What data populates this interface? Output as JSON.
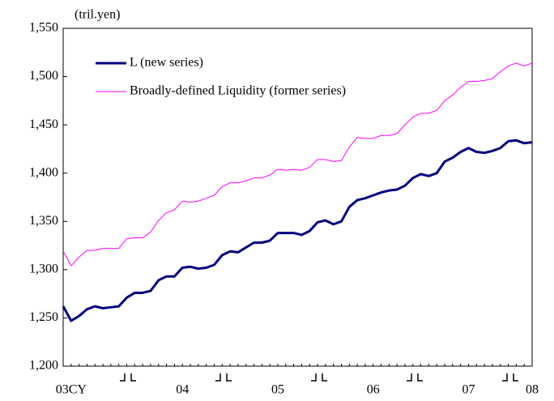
{
  "chart_data": {
    "type": "line",
    "y_unit": "(tril.yen)",
    "categories": [
      null,
      "03CY",
      null,
      null,
      null,
      null,
      null,
      null,
      null,
      null,
      null,
      null,
      null,
      null,
      null,
      "04",
      null,
      null,
      null,
      null,
      null,
      null,
      null,
      null,
      null,
      null,
      null,
      "05",
      null,
      null,
      null,
      null,
      null,
      null,
      null,
      null,
      null,
      null,
      null,
      "06",
      null,
      null,
      null,
      null,
      null,
      null,
      null,
      null,
      null,
      null,
      null,
      "07",
      null,
      null,
      null,
      null,
      null,
      null,
      null,
      "08"
    ],
    "series": [
      {
        "name": "L (new series)",
        "color": "#000080",
        "width": 3,
        "values": [
          1262,
          1247,
          1252,
          1259,
          1262,
          1260,
          1261,
          1262,
          1271,
          1276,
          1276,
          1278,
          1289,
          1293,
          1293,
          1302,
          1303,
          1301,
          1302,
          1305,
          1315,
          1319,
          1318,
          1323,
          1328,
          1328,
          1330,
          1338,
          1338,
          1338,
          1336,
          1340,
          1349,
          1351,
          1347,
          1350,
          1365,
          1372,
          1374,
          1377,
          1380,
          1382,
          1383,
          1387,
          1395,
          1399,
          1397,
          1400,
          1412,
          1416,
          1422,
          1426,
          1422,
          1421,
          1423,
          1426,
          1433,
          1434,
          1431,
          1432
        ]
      },
      {
        "name": "Broadly-defined Liquidity (former series)",
        "color": "#ff00ff",
        "width": 1,
        "values": [
          1319,
          1304,
          1313,
          1320,
          1320,
          1322,
          1322,
          1322,
          1332,
          1333,
          1333,
          1339,
          1351,
          1359,
          1362,
          1371,
          1370,
          1371,
          1374,
          1377,
          1386,
          1390,
          1390,
          1392,
          1395,
          1395,
          1398,
          1404,
          1403,
          1404,
          1403,
          1406,
          1414,
          1414,
          1412,
          1413,
          1427,
          1437,
          1436,
          1436,
          1439,
          1439,
          1441,
          1450,
          1458,
          1462,
          1462,
          1465,
          1475,
          1481,
          1489,
          1495,
          1495,
          1496,
          1498,
          1505,
          1511,
          1514,
          1511,
          1514
        ]
      }
    ],
    "ylim": [
      1200,
      1550
    ],
    "yticks": [
      {
        "value": 1200,
        "label": "1,200"
      },
      {
        "value": 1250,
        "label": "1,250"
      },
      {
        "value": 1300,
        "label": "1,300"
      },
      {
        "value": 1350,
        "label": "1,350"
      },
      {
        "value": 1400,
        "label": "1,400"
      },
      {
        "value": 1450,
        "label": "1,450"
      },
      {
        "value": 1500,
        "label": "1,500"
      },
      {
        "value": 1550,
        "label": "1,550"
      }
    ],
    "legend": "upper left",
    "grid": false
  }
}
